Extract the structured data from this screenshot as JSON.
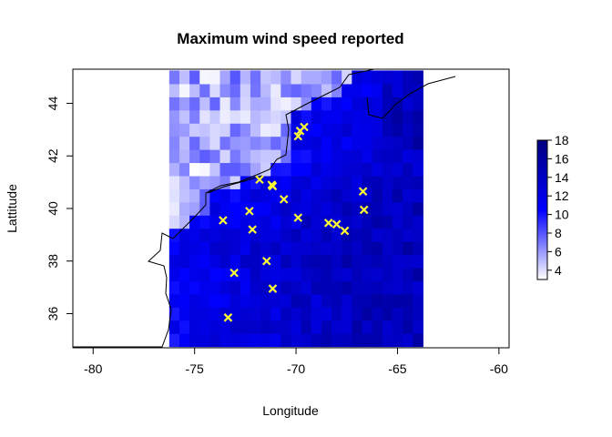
{
  "chart_data": {
    "type": "heatmap",
    "title": "Maximum wind speed reported",
    "xlabel": "Longitude",
    "ylabel": "Lattitude",
    "xlim": [
      -81,
      -59.5
    ],
    "ylim": [
      34.7,
      45.3
    ],
    "x_ticks": [
      "-80",
      "-75",
      "-70",
      "-65",
      "-60"
    ],
    "y_ticks": [
      "36",
      "38",
      "40",
      "42",
      "44"
    ],
    "grid": false,
    "heatmap": {
      "lon_range": [
        -76.25,
        -63.75
      ],
      "lat_range": [
        34.75,
        45.25
      ],
      "cell_size": 0.5,
      "value_range": [
        3,
        18
      ],
      "description_values": "high over ocean (about 10-18), low over land (about 3-8)"
    },
    "colorbar": {
      "ticks": [
        "4",
        "6",
        "8",
        "10",
        "12",
        "14",
        "16",
        "18"
      ],
      "min": 3,
      "max": 18,
      "colors": [
        "#ffffff",
        "#0000ff",
        "#00007f"
      ]
    },
    "station_markers": {
      "symbol": "x",
      "color": "#ffff33",
      "points": [
        {
          "lon": -69.6,
          "lat": 43.1
        },
        {
          "lon": -69.9,
          "lat": 42.75
        },
        {
          "lon": -69.8,
          "lat": 42.95
        },
        {
          "lon": -71.8,
          "lat": 41.1
        },
        {
          "lon": -71.2,
          "lat": 40.9
        },
        {
          "lon": -71.15,
          "lat": 40.85
        },
        {
          "lon": -70.6,
          "lat": 40.35
        },
        {
          "lon": -66.7,
          "lat": 40.65
        },
        {
          "lon": -66.65,
          "lat": 39.95
        },
        {
          "lon": -72.3,
          "lat": 39.9
        },
        {
          "lon": -73.6,
          "lat": 39.55
        },
        {
          "lon": -69.9,
          "lat": 39.65
        },
        {
          "lon": -68.4,
          "lat": 39.45
        },
        {
          "lon": -68.0,
          "lat": 39.4
        },
        {
          "lon": -67.6,
          "lat": 39.15
        },
        {
          "lon": -72.15,
          "lat": 39.2
        },
        {
          "lon": -71.45,
          "lat": 38.0
        },
        {
          "lon": -73.05,
          "lat": 37.55
        },
        {
          "lon": -71.15,
          "lat": 36.95
        },
        {
          "lon": -73.35,
          "lat": 35.85
        }
      ]
    }
  }
}
